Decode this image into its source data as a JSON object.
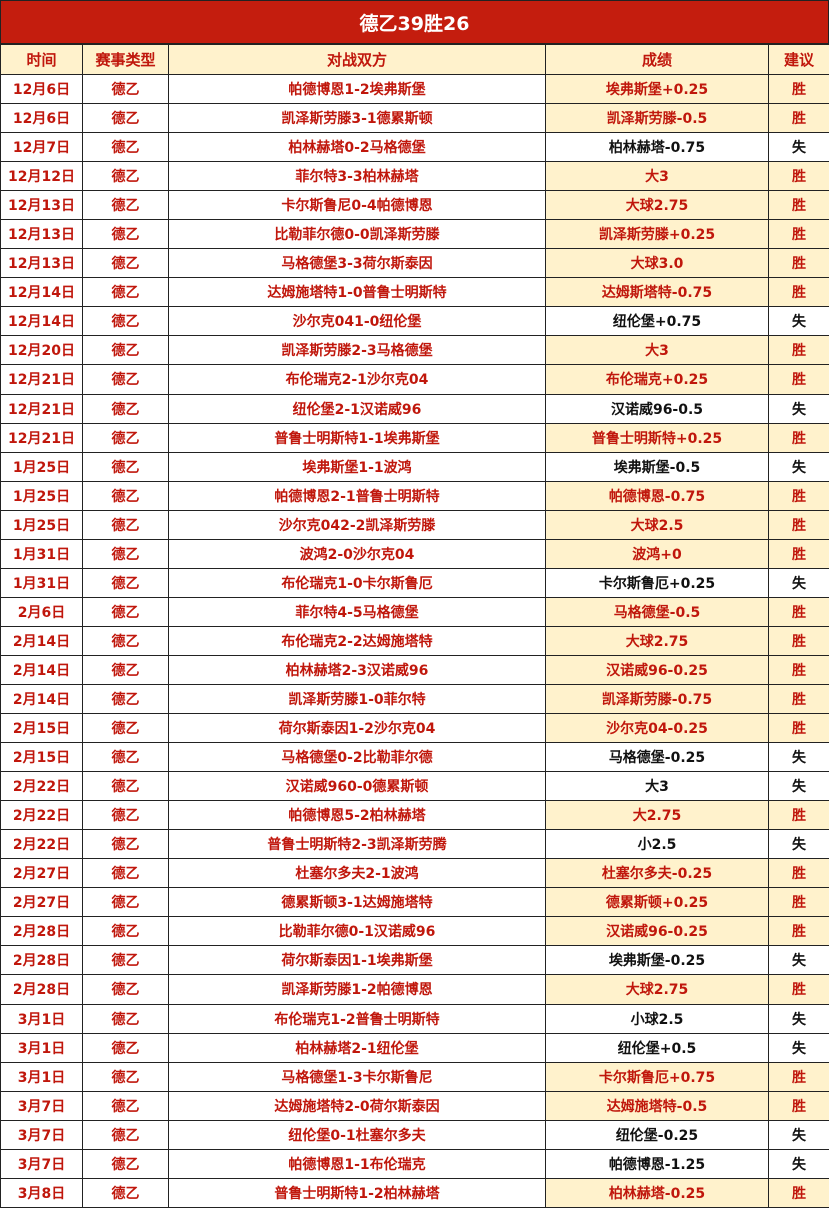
{
  "title": "德乙39胜26",
  "headers": [
    "时间",
    "赛事类型",
    "对战双方",
    "成绩",
    "建议"
  ],
  "colors": {
    "title_bg": "#c41d0e",
    "header_bg": "#fff2cc",
    "red_text": "#c0170c",
    "win_bg": "#fff2cc"
  },
  "rows": [
    [
      "12月6日",
      "德乙",
      "帕德博恩1-2埃弗斯堡",
      "埃弗斯堡+0.25",
      "胜"
    ],
    [
      "12月6日",
      "德乙",
      "凯泽斯劳滕3-1德累斯顿",
      "凯泽斯劳滕-0.5",
      "胜"
    ],
    [
      "12月7日",
      "德乙",
      "柏林赫塔0-2马格德堡",
      "柏林赫塔-0.75",
      "失"
    ],
    [
      "12月12日",
      "德乙",
      "菲尔特3-3柏林赫塔",
      "大3",
      "胜"
    ],
    [
      "12月13日",
      "德乙",
      "卡尔斯鲁尼0-4帕德博恩",
      "大球2.75",
      "胜"
    ],
    [
      "12月13日",
      "德乙",
      "比勒菲尔德0-0凯泽斯劳滕",
      "凯泽斯劳滕+0.25",
      "胜"
    ],
    [
      "12月13日",
      "德乙",
      "马格德堡3-3荷尔斯泰因",
      "大球3.0",
      "胜"
    ],
    [
      "12月14日",
      "德乙",
      "达姆施塔特1-0普鲁士明斯特",
      "达姆斯塔特-0.75",
      "胜"
    ],
    [
      "12月14日",
      "德乙",
      "沙尔克041-0纽伦堡",
      "纽伦堡+0.75",
      "失"
    ],
    [
      "12月20日",
      "德乙",
      "凯泽斯劳滕2-3马格德堡",
      "大3",
      "胜"
    ],
    [
      "12月21日",
      "德乙",
      "布伦瑞克2-1沙尔克04",
      "布伦瑞克+0.25",
      "胜"
    ],
    [
      "12月21日",
      "德乙",
      "纽伦堡2-1汉诺威96",
      "汉诺威96-0.5",
      "失"
    ],
    [
      "12月21日",
      "德乙",
      "普鲁士明斯特1-1埃弗斯堡",
      "普鲁士明斯特+0.25",
      "胜"
    ],
    [
      "1月25日",
      "德乙",
      "埃弗斯堡1-1波鸿",
      "埃弗斯堡-0.5",
      "失"
    ],
    [
      "1月25日",
      "德乙",
      "帕德博恩2-1普鲁士明斯特",
      "帕德博恩-0.75",
      "胜"
    ],
    [
      "1月25日",
      "德乙",
      "沙尔克042-2凯泽斯劳滕",
      "大球2.5",
      "胜"
    ],
    [
      "1月31日",
      "德乙",
      "波鸿2-0沙尔克04",
      "波鸿+0",
      "胜"
    ],
    [
      "1月31日",
      "德乙",
      "布伦瑞克1-0卡尔斯鲁厄",
      "卡尔斯鲁厄+0.25",
      "失"
    ],
    [
      "2月6日",
      "德乙",
      "菲尔特4-5马格德堡",
      "马格德堡-0.5",
      "胜"
    ],
    [
      "2月14日",
      "德乙",
      "布伦瑞克2-2达姆施塔特",
      "大球2.75",
      "胜"
    ],
    [
      "2月14日",
      "德乙",
      "柏林赫塔2-3汉诺威96",
      "汉诺威96-0.25",
      "胜"
    ],
    [
      "2月14日",
      "德乙",
      "凯泽斯劳滕1-0菲尔特",
      "凯泽斯劳滕-0.75",
      "胜"
    ],
    [
      "2月15日",
      "德乙",
      "荷尔斯泰因1-2沙尔克04",
      "沙尔克04-0.25",
      "胜"
    ],
    [
      "2月15日",
      "德乙",
      "马格德堡0-2比勒菲尔德",
      "马格德堡-0.25",
      "失"
    ],
    [
      "2月22日",
      "德乙",
      "汉诺威960-0德累斯顿",
      "大3",
      "失"
    ],
    [
      "2月22日",
      "德乙",
      "帕德博恩5-2柏林赫塔",
      "大2.75",
      "胜"
    ],
    [
      "2月22日",
      "德乙",
      "普鲁士明斯特2-3凯泽斯劳腾",
      "小2.5",
      "失"
    ],
    [
      "2月27日",
      "德乙",
      "杜塞尔多夫2-1波鸿",
      "杜塞尔多夫-0.25",
      "胜"
    ],
    [
      "2月27日",
      "德乙",
      "德累斯顿3-1达姆施塔特",
      "德累斯顿+0.25",
      "胜"
    ],
    [
      "2月28日",
      "德乙",
      "比勒菲尔德0-1汉诺威96",
      "汉诺威96-0.25",
      "胜"
    ],
    [
      "2月28日",
      "德乙",
      "荷尔斯泰因1-1埃弗斯堡",
      "埃弗斯堡-0.25",
      "失"
    ],
    [
      "2月28日",
      "德乙",
      "凯泽斯劳滕1-2帕德博恩",
      "大球2.75",
      "胜"
    ],
    [
      "3月1日",
      "德乙",
      "布伦瑞克1-2普鲁士明斯特",
      "小球2.5",
      "失"
    ],
    [
      "3月1日",
      "德乙",
      "柏林赫塔2-1纽伦堡",
      "纽伦堡+0.5",
      "失"
    ],
    [
      "3月1日",
      "德乙",
      "马格德堡1-3卡尔斯鲁尼",
      "卡尔斯鲁厄+0.75",
      "胜"
    ],
    [
      "3月7日",
      "德乙",
      "达姆施塔特2-0荷尔斯泰因",
      "达姆施塔特-0.5",
      "胜"
    ],
    [
      "3月7日",
      "德乙",
      "纽伦堡0-1杜塞尔多夫",
      "纽伦堡-0.25",
      "失"
    ],
    [
      "3月7日",
      "德乙",
      "帕德博恩1-1布伦瑞克",
      "帕德博恩-1.25",
      "失"
    ],
    [
      "3月8日",
      "德乙",
      "普鲁士明斯特1-2柏林赫塔",
      "柏林赫塔-0.25",
      "胜"
    ]
  ]
}
